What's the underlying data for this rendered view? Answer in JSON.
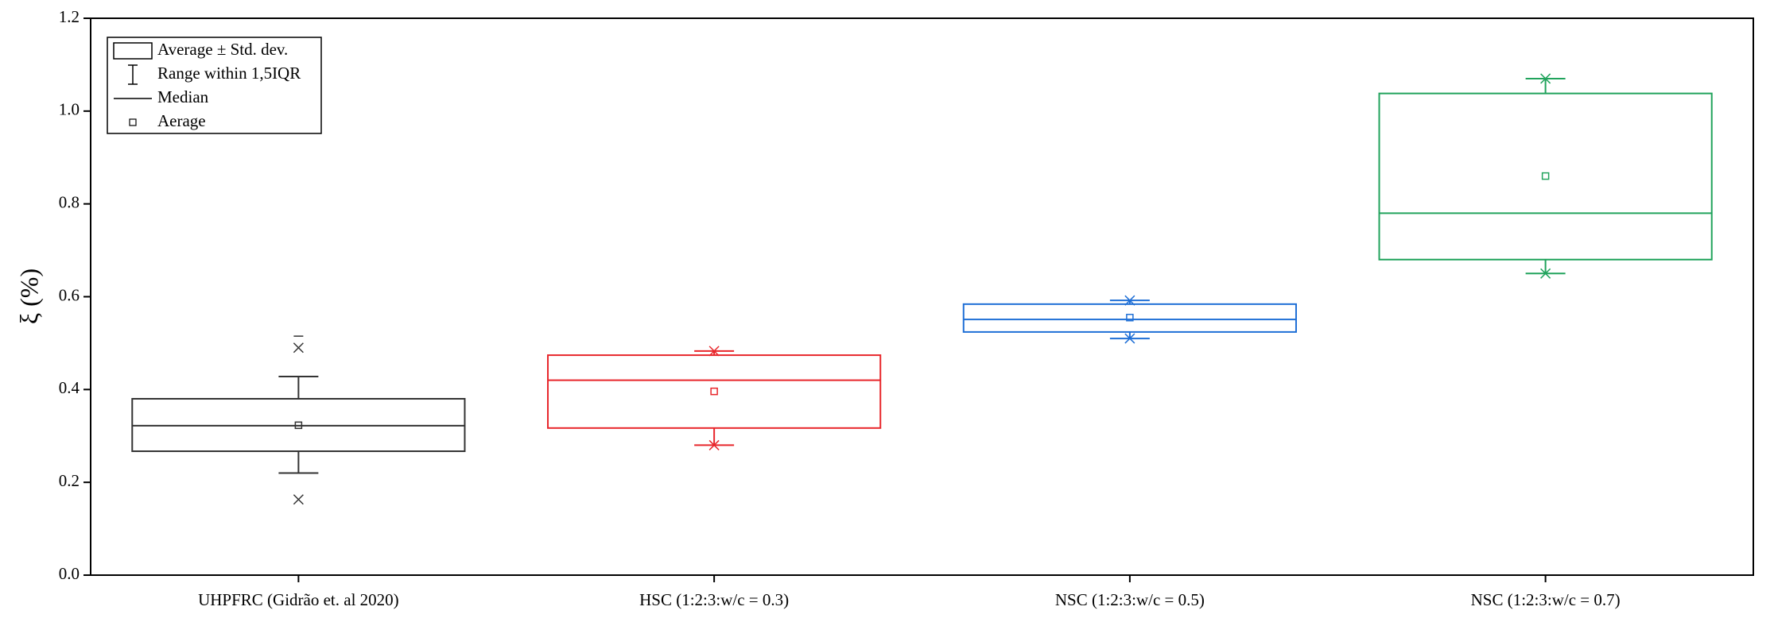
{
  "chart_data": {
    "type": "box",
    "y_label": "ξ (%)",
    "categories": [
      "UHPFRC (Gidrão et. al 2020)",
      "HSC (1:2:3:w/c = 0.3)",
      "NSC (1:2:3:w/c = 0.5)",
      "NSC (1:2:3:w/c = 0.7)"
    ],
    "boxes": [
      {
        "color": "#333333",
        "box_low": 0.267,
        "box_high": 0.38,
        "median": 0.322,
        "mean": 0.323,
        "whisker_low": 0.22,
        "whisker_high": 0.428,
        "extremes": [
          {
            "value": 0.163,
            "marker": "x"
          },
          {
            "value": 0.49,
            "marker": "x"
          },
          {
            "value": 0.515,
            "marker": "dash"
          }
        ]
      },
      {
        "color": "#e8262b",
        "box_low": 0.317,
        "box_high": 0.474,
        "median": 0.42,
        "mean": 0.396,
        "whisker_low": 0.28,
        "whisker_high": 0.483,
        "extremes": [
          {
            "value": 0.28,
            "marker": "x"
          },
          {
            "value": 0.483,
            "marker": "x"
          }
        ]
      },
      {
        "color": "#1f6fd6",
        "box_low": 0.524,
        "box_high": 0.584,
        "median": 0.551,
        "mean": 0.555,
        "whisker_low": 0.51,
        "whisker_high": 0.592,
        "extremes": [
          {
            "value": 0.51,
            "marker": "x"
          },
          {
            "value": 0.592,
            "marker": "x"
          }
        ]
      },
      {
        "color": "#21a35c",
        "box_low": 0.68,
        "box_high": 1.038,
        "median": 0.78,
        "mean": 0.86,
        "whisker_low": 0.65,
        "whisker_high": 1.07,
        "extremes": [
          {
            "value": 0.65,
            "marker": "x"
          },
          {
            "value": 1.07,
            "marker": "x"
          }
        ]
      }
    ],
    "ylim": [
      0,
      1.2
    ],
    "yticks": [
      {
        "value": 0,
        "label": "0.0"
      },
      0.2,
      0.4,
      0.6,
      0.8,
      {
        "value": 1,
        "label": "1.0"
      },
      1.2
    ],
    "legend": {
      "position": "upper-left",
      "entries": [
        "Average ± Std. dev.",
        "Range within 1,5IQR",
        "Median",
        "Aerage"
      ]
    }
  }
}
